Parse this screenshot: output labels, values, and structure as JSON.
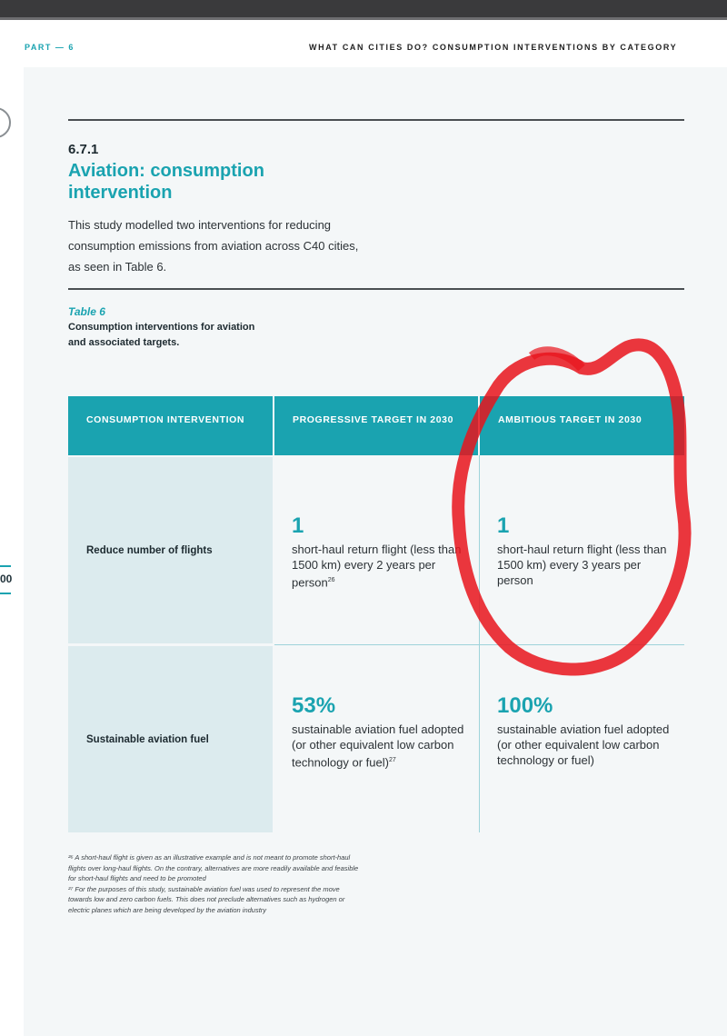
{
  "header": {
    "part": "PART — 6",
    "running_head": "WHAT CAN CITIES DO? CONSUMPTION INTERVENTIONS BY CATEGORY"
  },
  "sidebar": {
    "page_number_fragment": "00"
  },
  "section": {
    "number": "6.7.1",
    "title": "Aviation: consumption intervention",
    "intro": "This study modelled two interventions for reducing consumption emissions from aviation across C40 cities, as seen in Table 6."
  },
  "table": {
    "label": "Table 6",
    "caption": "Consumption interventions for aviation and associated targets.",
    "headers": [
      "CONSUMPTION INTERVENTION",
      "PROGRESSIVE TARGET IN 2030",
      "AMBITIOUS TARGET IN 2030"
    ],
    "rows": [
      {
        "intervention": "Reduce number of flights",
        "progressive_value": "1",
        "progressive_desc": "short-haul return flight (less than 1500 km) every 2 years per person",
        "progressive_ref": "26",
        "ambitious_value": "1",
        "ambitious_desc": "short-haul return flight (less than 1500 km) every 3 years per person"
      },
      {
        "intervention": "Sustainable aviation fuel",
        "progressive_value": "53%",
        "progressive_desc": "sustainable aviation fuel adopted (or other equivalent low carbon technology or fuel)",
        "progressive_ref": "27",
        "ambitious_value": "100%",
        "ambitious_desc": "sustainable aviation fuel adopted (or other equivalent low carbon technology or fuel)"
      }
    ]
  },
  "footnotes": [
    "²⁶ A short-haul flight is given as an illustrative example and is not meant to promote short-haul flights over long-haul flights. On the contrary, alternatives are more readily available and feasible for short-haul flights and need to be promoted",
    "²⁷ For the purposes of this study, sustainable aviation fuel was used to represent the move towards low and zero carbon fuels. This does not preclude alternatives such as hydrogen or electric planes which are being developed by the aviation industry"
  ],
  "colors": {
    "accent": "#1aa3b0",
    "row_header_bg": "#dcebee",
    "page_bg": "#f4f7f8",
    "annotation": "#e8141c"
  }
}
